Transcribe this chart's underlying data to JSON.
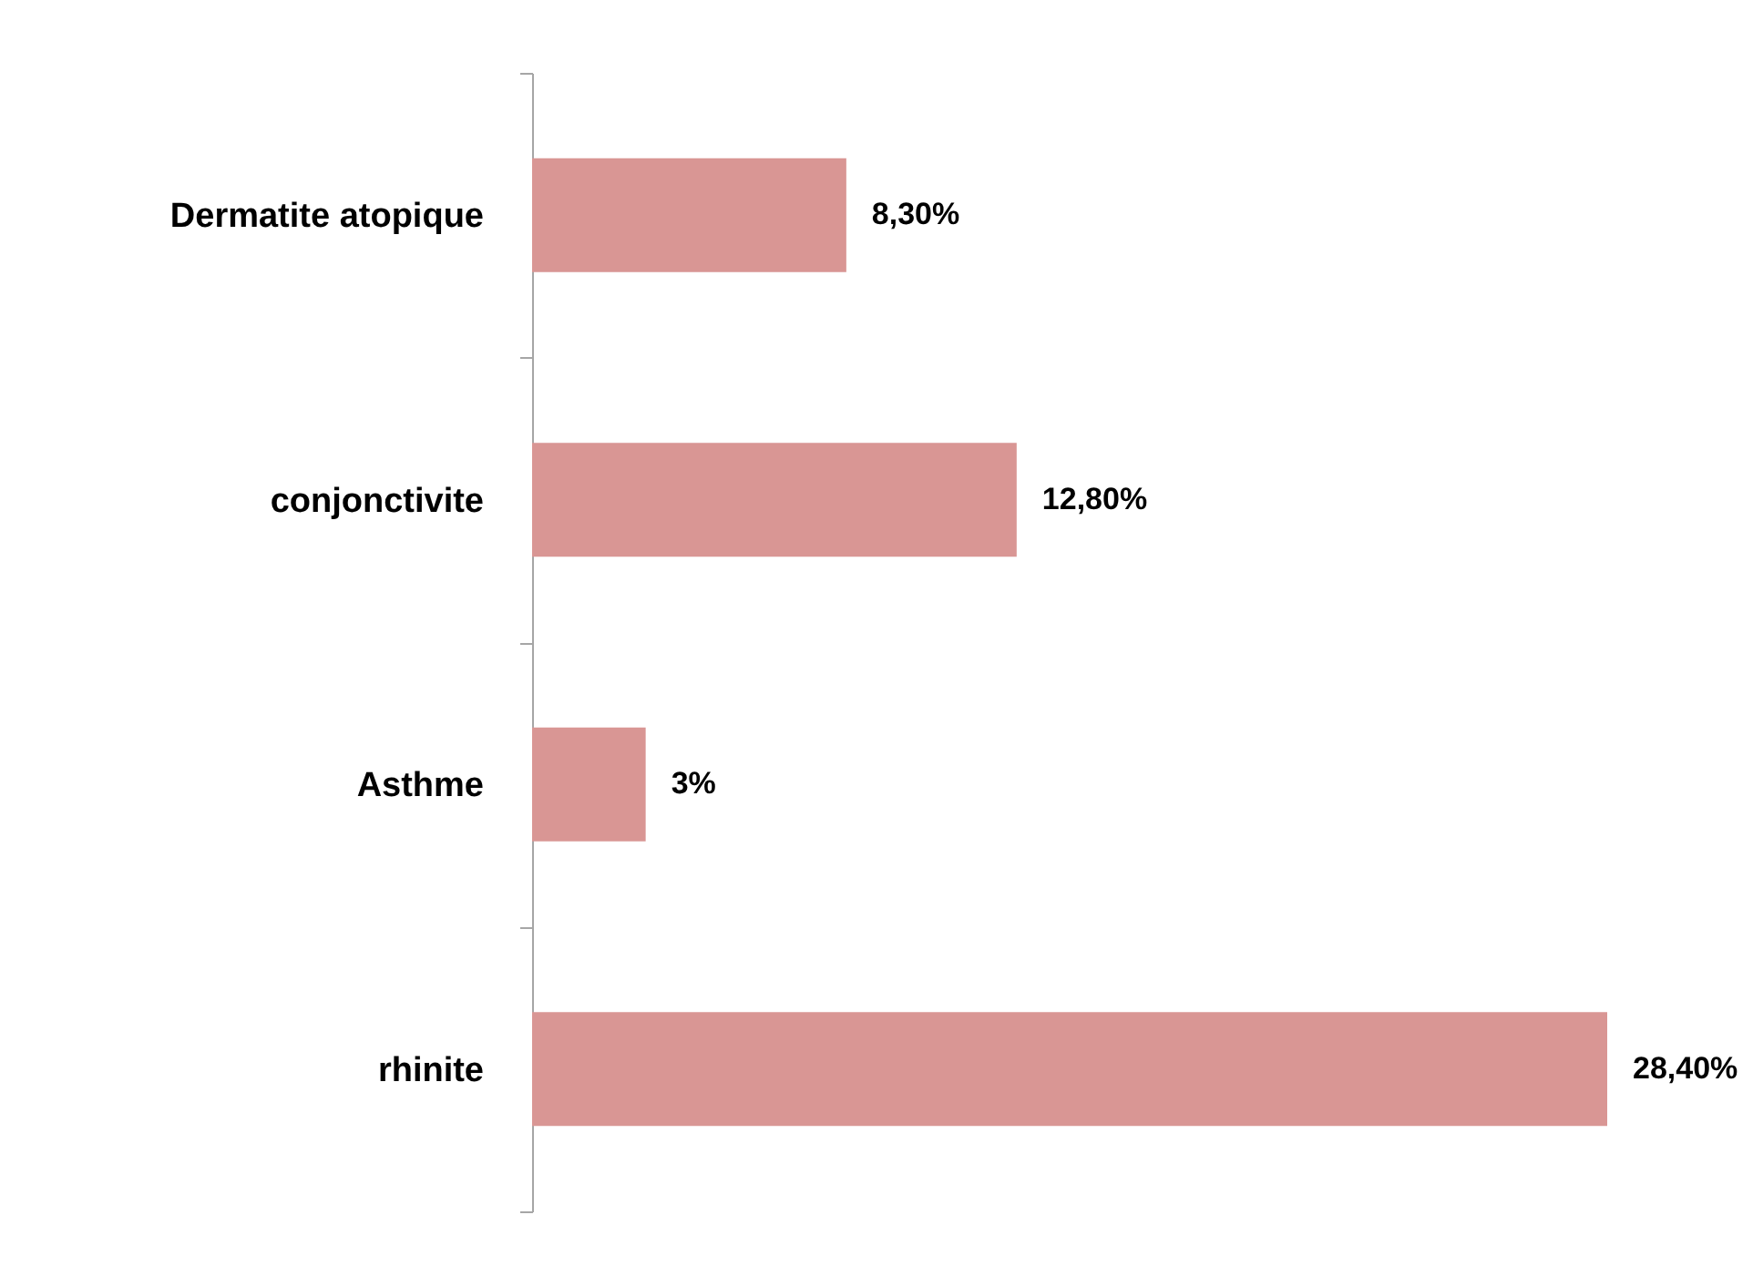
{
  "chart_data": {
    "type": "bar",
    "orientation": "horizontal",
    "categories": [
      "Dermatite atopique",
      "conjonctivite",
      "Asthme",
      "rhinite"
    ],
    "values": [
      8.3,
      12.8,
      3,
      28.4
    ],
    "value_labels": [
      "8,30%",
      "12,80%",
      "3%",
      "28,40%"
    ],
    "color": "#d99694"
  }
}
